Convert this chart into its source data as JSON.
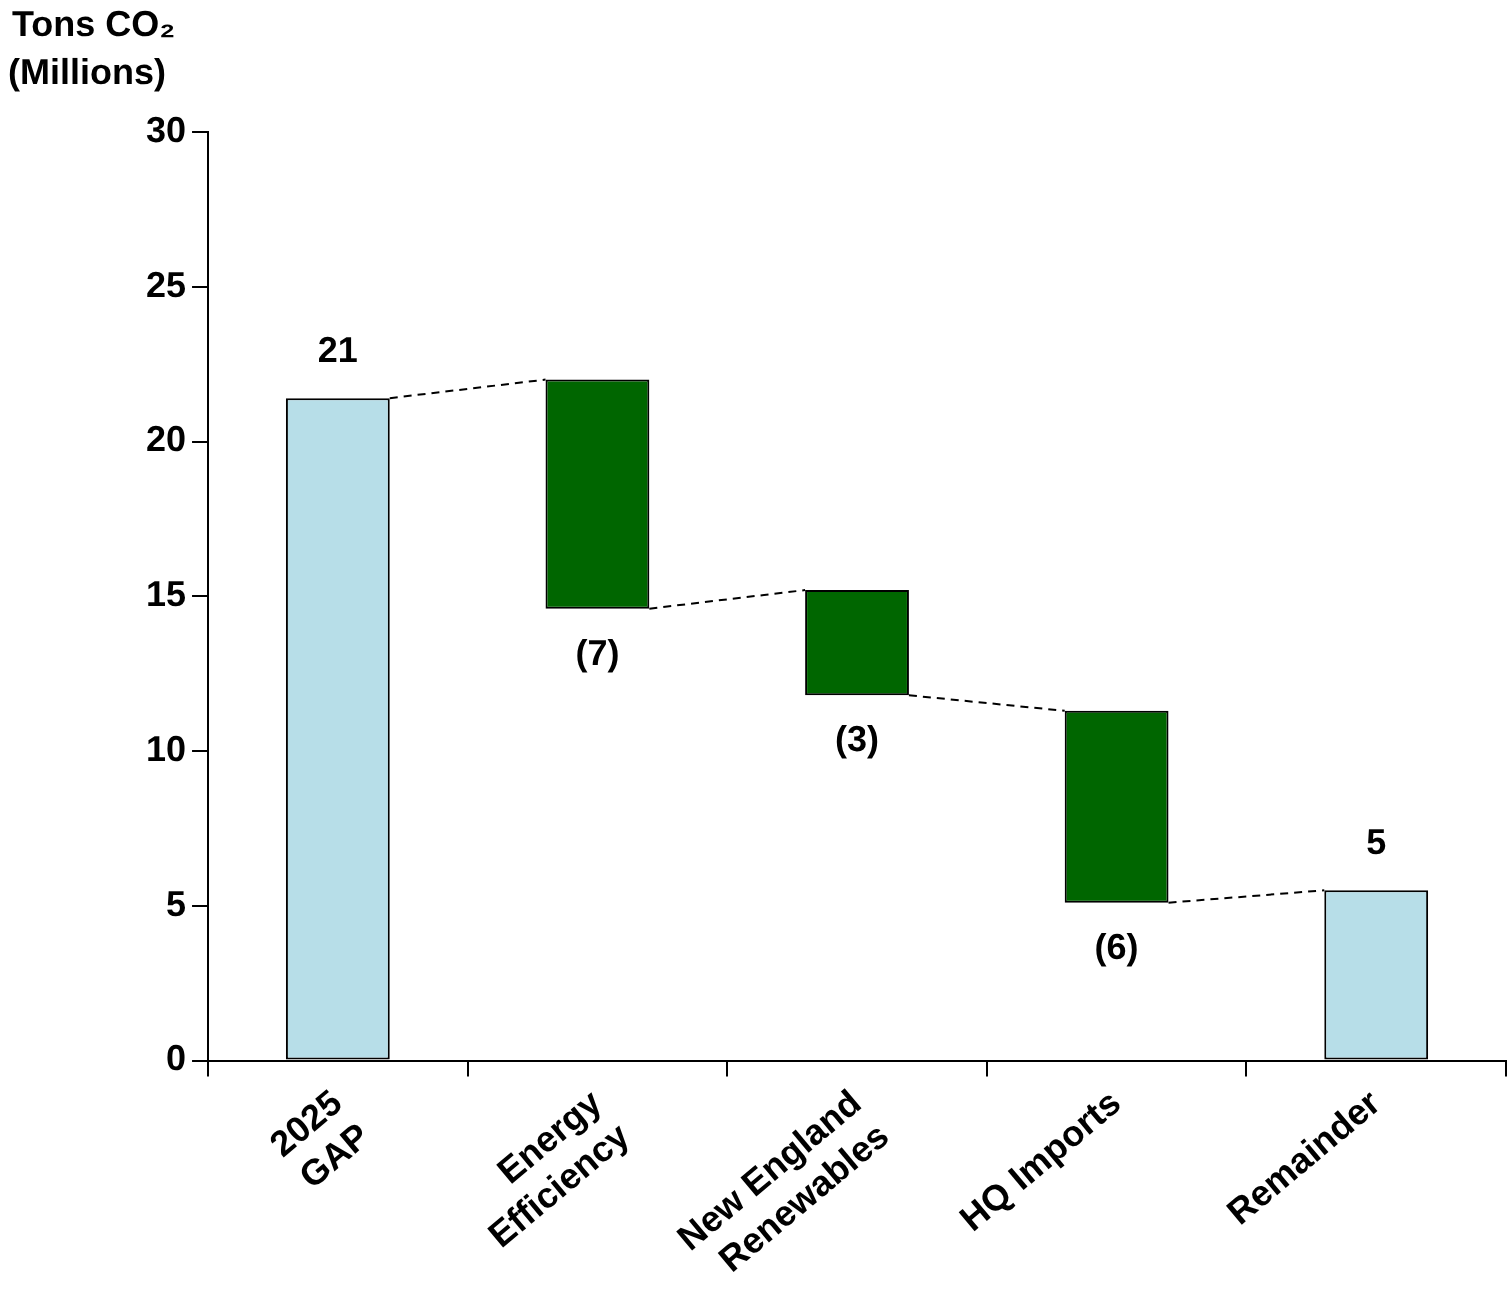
{
  "chart_data": {
    "type": "bar",
    "ylabel": "Tons CO₂\n(Millions)",
    "categories": [
      "2025\nGAP",
      "Energy\nEfficiency",
      "New England\nRenewables",
      "HQ Imports",
      "Remainder"
    ],
    "values": [
      21.4,
      -7.4,
      -3.4,
      -6.2,
      5.5
    ],
    "base": [
      0,
      22.0,
      15.2,
      11.3,
      0
    ],
    "colors": [
      "#b7dee8",
      "#006600",
      "#006600",
      "#006600",
      "#b7dee8"
    ],
    "value_labels": [
      "21",
      "(7)",
      "(3)",
      "(6)",
      "5"
    ],
    "ylim": [
      0,
      30
    ],
    "yticks": [
      0,
      5,
      10,
      15,
      20,
      25,
      30
    ],
    "grid": false,
    "legend": false
  }
}
